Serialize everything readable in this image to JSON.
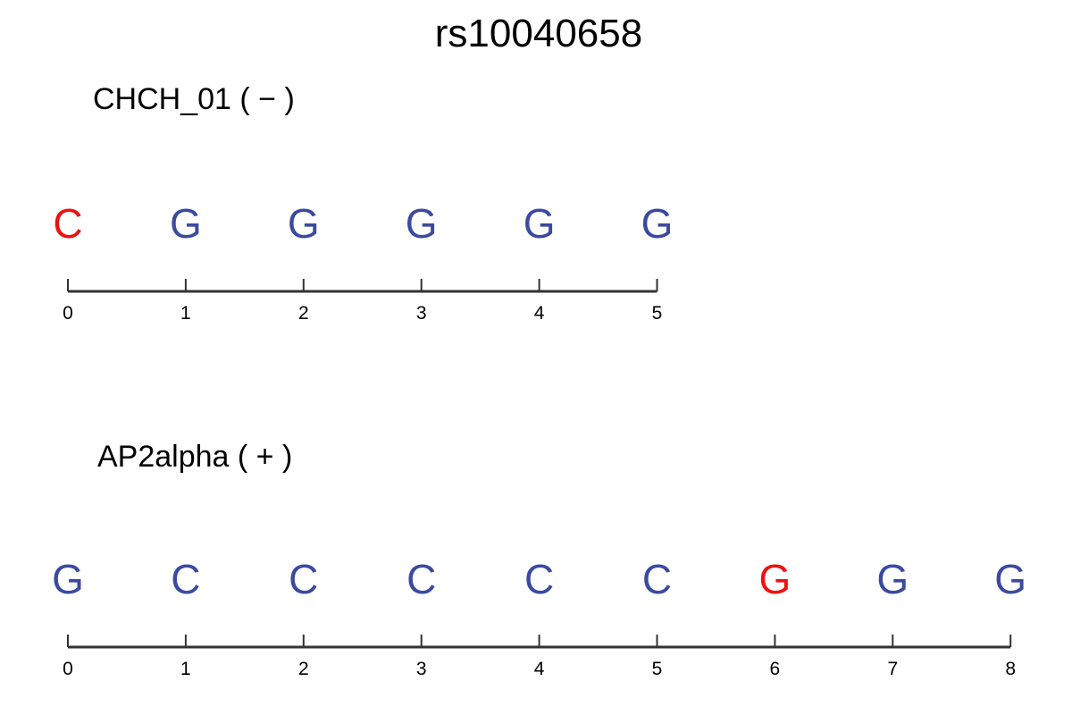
{
  "title": "rs10040658",
  "colors": {
    "normal": "#3b4aa0",
    "highlight": "#ee1111",
    "axis": "#333333",
    "text": "#000000"
  },
  "motifs": [
    {
      "label": "CHCH_01 ( − )",
      "bases": [
        "C",
        "G",
        "G",
        "G",
        "G",
        "G"
      ],
      "highlight_positions": [
        0
      ],
      "ticks": [
        "0",
        "1",
        "2",
        "3",
        "4",
        "5"
      ]
    },
    {
      "label": "AP2alpha ( + )",
      "bases": [
        "G",
        "C",
        "C",
        "C",
        "C",
        "C",
        "G",
        "G",
        "G"
      ],
      "highlight_positions": [
        6
      ],
      "ticks": [
        "0",
        "1",
        "2",
        "3",
        "4",
        "5",
        "6",
        "7",
        "8"
      ]
    }
  ]
}
